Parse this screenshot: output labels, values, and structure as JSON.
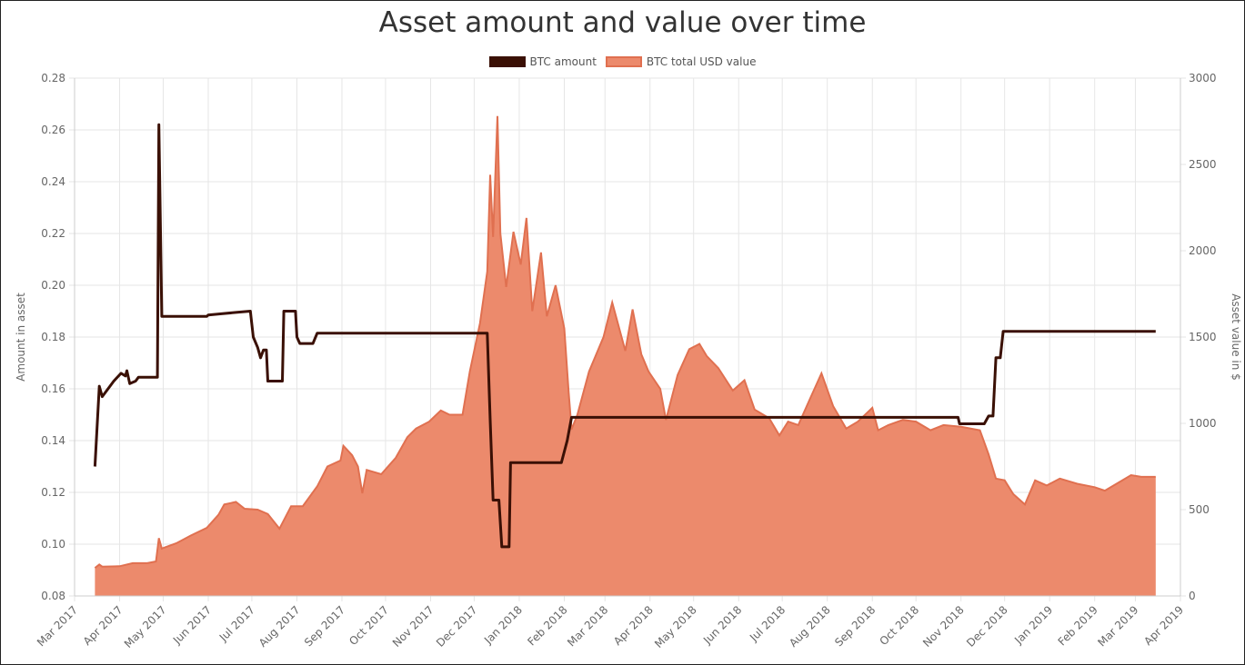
{
  "chart_data": {
    "type": "line",
    "title": "Asset amount and value over time",
    "legend_position": "top-center",
    "grid": true,
    "x_axis": {
      "type": "date",
      "range": [
        "2017-03-01",
        "2019-04-01"
      ],
      "ticks": [
        "Mar 2017",
        "Apr 2017",
        "May 2017",
        "Jun 2017",
        "Jul 2017",
        "Aug 2017",
        "Sep 2017",
        "Oct 2017",
        "Nov 2017",
        "Dec 2017",
        "Jan 2018",
        "Feb 2018",
        "Mar 2018",
        "Apr 2018",
        "May 2018",
        "Jun 2018",
        "Jul 2018",
        "Aug 2018",
        "Sep 2018",
        "Oct 2018",
        "Nov 2018",
        "Dec 2018",
        "Jan 2019",
        "Feb 2019",
        "Mar 2019",
        "Apr 2019"
      ]
    },
    "y_left": {
      "label": "Amount in asset",
      "range": [
        0.08,
        0.28
      ],
      "ticks": [
        "0.08",
        "0.10",
        "0.12",
        "0.14",
        "0.16",
        "0.18",
        "0.20",
        "0.22",
        "0.24",
        "0.26",
        "0.28"
      ]
    },
    "y_right": {
      "label": "Asset value in $",
      "range": [
        0,
        3000
      ],
      "ticks": [
        "0",
        "500",
        "1000",
        "1500",
        "2000",
        "2500",
        "3000"
      ]
    },
    "series": [
      {
        "name": "BTC amount",
        "axis": "left",
        "kind": "line",
        "color": "#3a1005",
        "points": [
          [
            "2017-03-15",
            0.13
          ],
          [
            "2017-03-18",
            0.161
          ],
          [
            "2017-03-20",
            0.157
          ],
          [
            "2017-03-28",
            0.163
          ],
          [
            "2017-04-02",
            0.166
          ],
          [
            "2017-04-05",
            0.165
          ],
          [
            "2017-04-06",
            0.167
          ],
          [
            "2017-04-08",
            0.162
          ],
          [
            "2017-04-12",
            0.163
          ],
          [
            "2017-04-14",
            0.1645
          ],
          [
            "2017-04-27",
            0.1645
          ],
          [
            "2017-04-28",
            0.262
          ],
          [
            "2017-04-30",
            0.188
          ],
          [
            "2017-05-31",
            0.188
          ],
          [
            "2017-06-01",
            0.1885
          ],
          [
            "2017-06-10",
            0.189
          ],
          [
            "2017-06-20",
            0.1895
          ],
          [
            "2017-06-30",
            0.19
          ],
          [
            "2017-07-02",
            0.18
          ],
          [
            "2017-07-05",
            0.176
          ],
          [
            "2017-07-07",
            0.172
          ],
          [
            "2017-07-09",
            0.175
          ],
          [
            "2017-07-11",
            0.175
          ],
          [
            "2017-07-12",
            0.163
          ],
          [
            "2017-07-22",
            0.163
          ],
          [
            "2017-07-23",
            0.19
          ],
          [
            "2017-07-31",
            0.19
          ],
          [
            "2017-08-01",
            0.18
          ],
          [
            "2017-08-03",
            0.1775
          ],
          [
            "2017-08-12",
            0.1775
          ],
          [
            "2017-08-15",
            0.1815
          ],
          [
            "2017-12-10",
            0.1815
          ],
          [
            "2017-12-12",
            0.148
          ],
          [
            "2017-12-14",
            0.117
          ],
          [
            "2017-12-18",
            0.117
          ],
          [
            "2017-12-20",
            0.099
          ],
          [
            "2017-12-25",
            0.099
          ],
          [
            "2017-12-26",
            0.1315
          ],
          [
            "2018-01-30",
            0.1315
          ],
          [
            "2018-02-03",
            0.14
          ],
          [
            "2018-02-06",
            0.149
          ],
          [
            "2018-07-01",
            0.149
          ],
          [
            "2018-09-30",
            0.149
          ],
          [
            "2018-10-30",
            0.149
          ],
          [
            "2018-10-31",
            0.1465
          ],
          [
            "2018-11-01",
            0.1465
          ],
          [
            "2018-11-17",
            0.1465
          ],
          [
            "2018-11-20",
            0.1495
          ],
          [
            "2018-11-23",
            0.1495
          ],
          [
            "2018-11-25",
            0.172
          ],
          [
            "2018-11-28",
            0.172
          ],
          [
            "2018-11-30",
            0.1822
          ],
          [
            "2019-03-15",
            0.1822
          ]
        ]
      },
      {
        "name": "BTC total USD value",
        "axis": "right",
        "kind": "area",
        "color": "#ec8a6c",
        "stroke": "#e07050",
        "points": [
          [
            "2017-03-15",
            162
          ],
          [
            "2017-03-18",
            182
          ],
          [
            "2017-03-20",
            170
          ],
          [
            "2017-04-01",
            172
          ],
          [
            "2017-04-10",
            190
          ],
          [
            "2017-04-20",
            190
          ],
          [
            "2017-04-26",
            200
          ],
          [
            "2017-04-28",
            335
          ],
          [
            "2017-04-30",
            275
          ],
          [
            "2017-05-10",
            305
          ],
          [
            "2017-05-20",
            350
          ],
          [
            "2017-05-31",
            395
          ],
          [
            "2017-06-08",
            470
          ],
          [
            "2017-06-12",
            530
          ],
          [
            "2017-06-20",
            545
          ],
          [
            "2017-06-26",
            505
          ],
          [
            "2017-07-05",
            500
          ],
          [
            "2017-07-12",
            475
          ],
          [
            "2017-07-20",
            390
          ],
          [
            "2017-07-28",
            520
          ],
          [
            "2017-08-05",
            520
          ],
          [
            "2017-08-15",
            635
          ],
          [
            "2017-08-22",
            750
          ],
          [
            "2017-08-31",
            785
          ],
          [
            "2017-09-02",
            870
          ],
          [
            "2017-09-08",
            815
          ],
          [
            "2017-09-12",
            750
          ],
          [
            "2017-09-15",
            595
          ],
          [
            "2017-09-18",
            730
          ],
          [
            "2017-09-28",
            705
          ],
          [
            "2017-10-08",
            800
          ],
          [
            "2017-10-16",
            920
          ],
          [
            "2017-10-22",
            970
          ],
          [
            "2017-10-31",
            1010
          ],
          [
            "2017-11-08",
            1075
          ],
          [
            "2017-11-14",
            1050
          ],
          [
            "2017-11-23",
            1050
          ],
          [
            "2017-11-28",
            1300
          ],
          [
            "2017-12-05",
            1580
          ],
          [
            "2017-12-10",
            1880
          ],
          [
            "2017-12-12",
            2440
          ],
          [
            "2017-12-14",
            2080
          ],
          [
            "2017-12-17",
            2780
          ],
          [
            "2017-12-19",
            2100
          ],
          [
            "2017-12-23",
            1790
          ],
          [
            "2017-12-28",
            2110
          ],
          [
            "2018-01-02",
            1920
          ],
          [
            "2018-01-06",
            2190
          ],
          [
            "2018-01-10",
            1650
          ],
          [
            "2018-01-16",
            1990
          ],
          [
            "2018-01-20",
            1620
          ],
          [
            "2018-01-26",
            1800
          ],
          [
            "2018-02-01",
            1550
          ],
          [
            "2018-02-04",
            1180
          ],
          [
            "2018-02-06",
            965
          ],
          [
            "2018-02-10",
            1050
          ],
          [
            "2018-02-18",
            1300
          ],
          [
            "2018-02-28",
            1500
          ],
          [
            "2018-03-06",
            1700
          ],
          [
            "2018-03-15",
            1420
          ],
          [
            "2018-03-20",
            1660
          ],
          [
            "2018-03-26",
            1400
          ],
          [
            "2018-03-31",
            1300
          ],
          [
            "2018-04-08",
            1200
          ],
          [
            "2018-04-12",
            1020
          ],
          [
            "2018-04-20",
            1280
          ],
          [
            "2018-04-28",
            1430
          ],
          [
            "2018-05-05",
            1460
          ],
          [
            "2018-05-10",
            1390
          ],
          [
            "2018-05-18",
            1320
          ],
          [
            "2018-05-28",
            1190
          ],
          [
            "2018-06-05",
            1250
          ],
          [
            "2018-06-12",
            1080
          ],
          [
            "2018-06-22",
            1030
          ],
          [
            "2018-06-29",
            930
          ],
          [
            "2018-07-05",
            1010
          ],
          [
            "2018-07-12",
            990
          ],
          [
            "2018-07-20",
            1140
          ],
          [
            "2018-07-28",
            1290
          ],
          [
            "2018-08-05",
            1100
          ],
          [
            "2018-08-14",
            970
          ],
          [
            "2018-08-22",
            1010
          ],
          [
            "2018-09-01",
            1090
          ],
          [
            "2018-09-05",
            960
          ],
          [
            "2018-09-12",
            990
          ],
          [
            "2018-09-22",
            1020
          ],
          [
            "2018-10-01",
            1010
          ],
          [
            "2018-10-11",
            960
          ],
          [
            "2018-10-20",
            990
          ],
          [
            "2018-11-01",
            980
          ],
          [
            "2018-11-14",
            960
          ],
          [
            "2018-11-20",
            820
          ],
          [
            "2018-11-25",
            680
          ],
          [
            "2018-12-01",
            670
          ],
          [
            "2018-12-07",
            590
          ],
          [
            "2018-12-15",
            530
          ],
          [
            "2018-12-22",
            670
          ],
          [
            "2018-12-30",
            640
          ],
          [
            "2019-01-08",
            680
          ],
          [
            "2019-01-20",
            650
          ],
          [
            "2019-02-01",
            630
          ],
          [
            "2019-02-08",
            610
          ],
          [
            "2019-02-18",
            660
          ],
          [
            "2019-02-26",
            700
          ],
          [
            "2019-03-05",
            690
          ],
          [
            "2019-03-15",
            690
          ]
        ]
      }
    ]
  }
}
